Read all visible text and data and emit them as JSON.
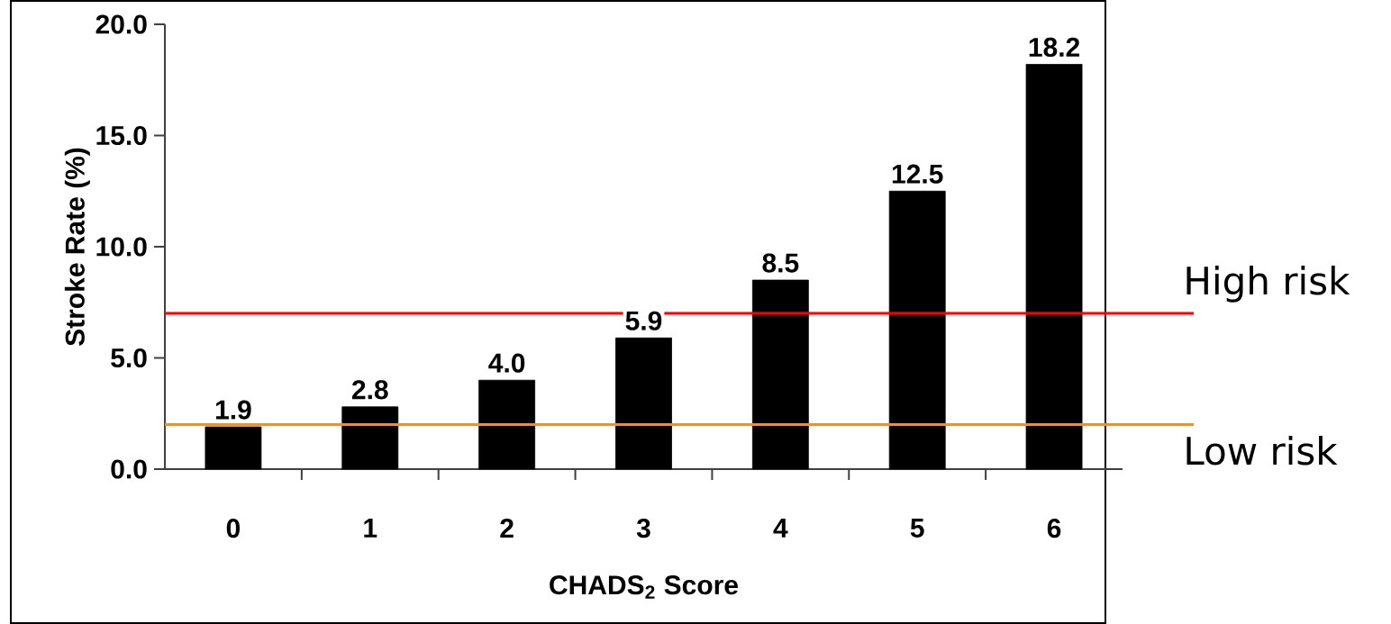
{
  "chart_data": {
    "type": "bar",
    "xlabel": "CHADS$_{2}$ Score",
    "ylabel": "Stroke Rate (%)",
    "categories": [
      "0",
      "1",
      "2",
      "3",
      "4",
      "5",
      "6"
    ],
    "values": [
      1.9,
      2.8,
      4.0,
      5.9,
      8.5,
      12.5,
      18.2
    ],
    "value_labels": [
      "1.9",
      "2.8",
      "4.0",
      "5.9",
      "8.5",
      "12.5",
      "18.2"
    ],
    "color": "#000000",
    "ylim": [
      0,
      20
    ],
    "yticks": [
      {
        "value": 0,
        "label": "0.0"
      },
      {
        "value": 5,
        "label": "5.0"
      },
      {
        "value": 10,
        "label": "10.0"
      },
      {
        "value": 15,
        "label": "15.0"
      },
      {
        "value": 20,
        "label": "20.0"
      }
    ],
    "ref_lines": [
      {
        "axis": "y",
        "value": 7.0,
        "label": "High risk",
        "color": "#ff0000"
      },
      {
        "axis": "y",
        "value": 2.0,
        "label": "Low risk",
        "color": "#ff8c1a"
      }
    ]
  }
}
